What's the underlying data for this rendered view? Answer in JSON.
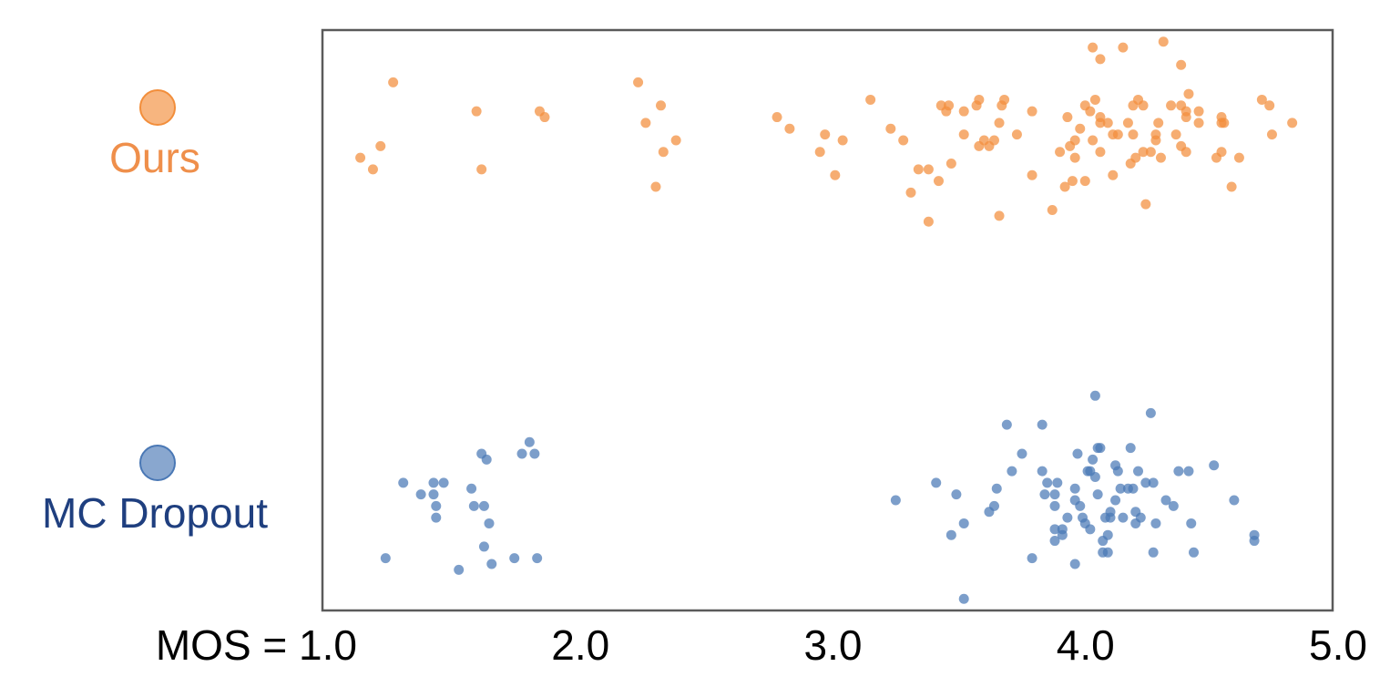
{
  "chart_data": {
    "type": "scatter",
    "xlim": [
      1,
      5
    ],
    "ylim": [
      0,
      1
    ],
    "xticks": [
      {
        "value": 1,
        "label": "MOS = 1.0"
      },
      {
        "value": 2,
        "label": "2.0"
      },
      {
        "value": 3,
        "label": "3.0"
      },
      {
        "value": 4,
        "label": "4.0"
      },
      {
        "value": 5,
        "label": "5.0"
      }
    ],
    "series": [
      {
        "name": "Ours",
        "color": "#f28e3b",
        "text_color": "#ef8f4b",
        "x": [
          1.15,
          1.2,
          1.23,
          1.28,
          1.61,
          1.63,
          1.86,
          1.88,
          2.25,
          2.28,
          2.32,
          2.34,
          2.35,
          2.4,
          2.8,
          2.85,
          2.99,
          2.97,
          3.03,
          3.06,
          3.17,
          3.25,
          3.3,
          3.33,
          3.36,
          3.4,
          3.4,
          3.44,
          3.45,
          3.47,
          3.48,
          3.49,
          3.54,
          3.54,
          3.59,
          3.6,
          3.62,
          3.64,
          3.66,
          3.6,
          3.68,
          3.68,
          3.69,
          3.7,
          3.75,
          3.81,
          3.81,
          3.89,
          3.92,
          3.94,
          3.95,
          3.97,
          3.98,
          4.0,
          4.02,
          4.02,
          4.05,
          4.05,
          4.06,
          4.08,
          4.08,
          4.08,
          4.11,
          4.13,
          4.15,
          4.17,
          4.19,
          4.2,
          4.21,
          4.22,
          4.23,
          4.25,
          4.26,
          4.25,
          4.3,
          4.3,
          4.31,
          4.33,
          4.36,
          4.38,
          4.4,
          4.4,
          4.4,
          4.42,
          4.42,
          4.43,
          4.47,
          4.47,
          4.54,
          4.56,
          4.56,
          4.56,
          4.6,
          4.63,
          4.72,
          4.75,
          4.76,
          4.84,
          4.32,
          4.28,
          4.13,
          4.08,
          3.96,
          4.04,
          4.21,
          4.42,
          4.57,
          3.98
        ],
        "y": [
          0.78,
          0.76,
          0.8,
          0.91,
          0.86,
          0.76,
          0.86,
          0.85,
          0.91,
          0.84,
          0.73,
          0.87,
          0.79,
          0.81,
          0.85,
          0.83,
          0.82,
          0.79,
          0.75,
          0.81,
          0.88,
          0.83,
          0.81,
          0.72,
          0.76,
          0.76,
          0.67,
          0.74,
          0.87,
          0.86,
          0.87,
          0.77,
          0.86,
          0.82,
          0.87,
          0.8,
          0.81,
          0.8,
          0.81,
          0.88,
          0.68,
          0.84,
          0.87,
          0.88,
          0.82,
          0.86,
          0.75,
          0.69,
          0.79,
          0.73,
          0.85,
          0.74,
          0.81,
          0.83,
          0.74,
          0.87,
          0.81,
          0.97,
          0.88,
          0.84,
          0.85,
          0.95,
          0.84,
          0.75,
          0.82,
          0.97,
          0.84,
          0.77,
          0.87,
          0.78,
          0.88,
          0.87,
          0.7,
          0.79,
          0.81,
          0.82,
          0.84,
          0.98,
          0.87,
          0.82,
          0.8,
          0.87,
          0.94,
          0.85,
          0.79,
          0.89,
          0.86,
          0.84,
          0.78,
          0.85,
          0.84,
          0.79,
          0.73,
          0.78,
          0.88,
          0.87,
          0.82,
          0.84,
          0.78,
          0.79,
          0.82,
          0.79,
          0.8,
          0.86,
          0.82,
          0.86,
          0.84,
          0.78
        ]
      },
      {
        "name": "MC Dropout",
        "color": "#4a78b5",
        "text_color": "#1f3f7f",
        "x": [
          1.25,
          1.32,
          1.39,
          1.44,
          1.44,
          1.45,
          1.45,
          1.48,
          1.54,
          1.59,
          1.6,
          1.63,
          1.64,
          1.65,
          1.66,
          1.64,
          1.67,
          1.76,
          1.79,
          1.82,
          1.84,
          1.85,
          3.27,
          3.43,
          3.49,
          3.51,
          3.54,
          3.54,
          3.64,
          3.66,
          3.67,
          3.71,
          3.73,
          3.77,
          3.81,
          3.85,
          3.85,
          3.87,
          3.86,
          3.9,
          3.9,
          3.9,
          3.91,
          3.9,
          3.93,
          3.93,
          3.95,
          3.98,
          3.98,
          3.99,
          4.0,
          4.01,
          4.02,
          4.03,
          4.04,
          4.04,
          4.05,
          4.06,
          4.06,
          4.07,
          4.07,
          4.08,
          4.09,
          4.09,
          4.1,
          4.11,
          4.12,
          4.12,
          4.14,
          4.14,
          4.15,
          4.16,
          4.17,
          4.19,
          4.2,
          4.21,
          4.22,
          4.22,
          4.23,
          4.24,
          4.26,
          4.28,
          4.29,
          4.3,
          4.29,
          4.34,
          4.37,
          4.39,
          4.43,
          4.44,
          4.45,
          4.53,
          4.61,
          4.69,
          4.69,
          4.11,
          3.98
        ],
        "y": [
          0.09,
          0.22,
          0.2,
          0.22,
          0.2,
          0.18,
          0.16,
          0.22,
          0.07,
          0.21,
          0.18,
          0.27,
          0.18,
          0.26,
          0.15,
          0.11,
          0.08,
          0.09,
          0.27,
          0.29,
          0.27,
          0.09,
          0.19,
          0.22,
          0.13,
          0.2,
          0.02,
          0.15,
          0.17,
          0.18,
          0.21,
          0.32,
          0.24,
          0.27,
          0.09,
          0.32,
          0.24,
          0.22,
          0.2,
          0.18,
          0.14,
          0.12,
          0.22,
          0.2,
          0.13,
          0.14,
          0.16,
          0.08,
          0.19,
          0.27,
          0.18,
          0.16,
          0.15,
          0.24,
          0.24,
          0.14,
          0.26,
          0.37,
          0.23,
          0.2,
          0.28,
          0.28,
          0.12,
          0.1,
          0.16,
          0.13,
          0.16,
          0.17,
          0.25,
          0.19,
          0.24,
          0.21,
          0.16,
          0.21,
          0.28,
          0.21,
          0.15,
          0.17,
          0.24,
          0.16,
          0.22,
          0.34,
          0.22,
          0.15,
          0.1,
          0.19,
          0.18,
          0.24,
          0.24,
          0.15,
          0.1,
          0.25,
          0.19,
          0.13,
          0.12,
          0.1,
          0.21
        ]
      }
    ]
  }
}
